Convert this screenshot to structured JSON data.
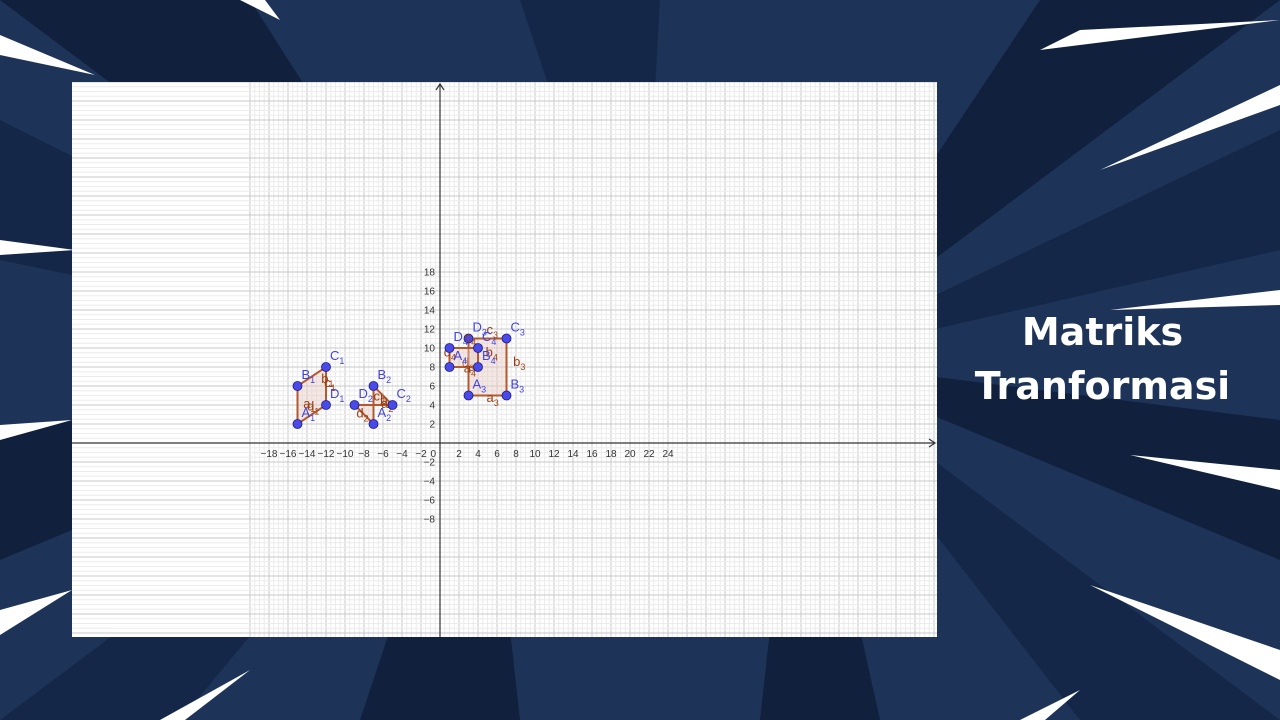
{
  "slide": {
    "title_line1": "Matriks",
    "title_line2": "Tranformasi",
    "colors": {
      "background": "#1d3358",
      "title": "#ffffff",
      "shape_stroke": "#b5582b",
      "shape_fill": "#e8cdc4",
      "vertex": "#4a4ae8"
    }
  },
  "graph": {
    "x_ticks": [
      -18,
      -16,
      -14,
      -12,
      -10,
      -8,
      -6,
      -4,
      -2,
      0,
      2,
      4,
      6,
      8,
      10,
      12,
      14,
      16,
      18,
      20,
      22,
      24
    ],
    "y_ticks": [
      18,
      16,
      14,
      12,
      10,
      8,
      6,
      4,
      2,
      -2,
      -4,
      -6,
      -8
    ],
    "x_tick_labels": [
      "−18",
      "−16",
      "−14",
      "−12",
      "−10",
      "−8",
      "−6",
      "−4",
      "−2",
      "0",
      "2",
      "4",
      "6",
      "8",
      "10",
      "12",
      "14",
      "16",
      "18",
      "20",
      "22",
      "24"
    ],
    "y_tick_labels": [
      "18",
      "16",
      "14",
      "12",
      "10",
      "8",
      "6",
      "4",
      "2",
      "−2",
      "−4",
      "−6",
      "−8"
    ],
    "shapes": [
      {
        "name": "shape-1",
        "vertices": [
          {
            "name": "A",
            "sub": "1",
            "x": -15,
            "y": 2
          },
          {
            "name": "B",
            "sub": "1",
            "x": -15,
            "y": 6
          },
          {
            "name": "C",
            "sub": "1",
            "x": -12,
            "y": 8
          },
          {
            "name": "D",
            "sub": "1",
            "x": -12,
            "y": 4
          }
        ],
        "side_labels": [
          {
            "name": "a",
            "sub": "1",
            "x": -14.4,
            "y": 3.7
          },
          {
            "name": "b",
            "sub": "1",
            "x": -12.5,
            "y": 6.3
          },
          {
            "name": "c",
            "sub": "1",
            "x": -12.2,
            "y": 5.9
          },
          {
            "name": "d",
            "sub": "1",
            "x": -14,
            "y": 3.4
          }
        ]
      },
      {
        "name": "shape-2",
        "vertices": [
          {
            "name": "A",
            "sub": "2",
            "x": -7,
            "y": 2
          },
          {
            "name": "B",
            "sub": "2",
            "x": -7,
            "y": 6
          },
          {
            "name": "C",
            "sub": "2",
            "x": -5,
            "y": 4
          },
          {
            "name": "D",
            "sub": "2",
            "x": -9,
            "y": 4
          }
        ],
        "side_labels": [
          {
            "name": "a",
            "sub": "2",
            "x": -6.2,
            "y": 3.7
          },
          {
            "name": "b",
            "sub": "2",
            "x": -6.3,
            "y": 4.1
          },
          {
            "name": "c",
            "sub": "2",
            "x": -7,
            "y": 4.5
          },
          {
            "name": "d",
            "sub": "2",
            "x": -8.8,
            "y": 2.7
          }
        ]
      },
      {
        "name": "shape-3",
        "vertices": [
          {
            "name": "A",
            "sub": "3",
            "x": 3,
            "y": 5
          },
          {
            "name": "B",
            "sub": "3",
            "x": 7,
            "y": 5
          },
          {
            "name": "C",
            "sub": "3",
            "x": 7,
            "y": 11
          },
          {
            "name": "D",
            "sub": "3",
            "x": 3,
            "y": 11
          }
        ],
        "side_labels": [
          {
            "name": "a",
            "sub": "3",
            "x": 4.9,
            "y": 4.3
          },
          {
            "name": "b",
            "sub": "3",
            "x": 7.7,
            "y": 8.1
          },
          {
            "name": "c",
            "sub": "3",
            "x": 4.9,
            "y": 11.5
          },
          {
            "name": "d",
            "sub": "3",
            "x": 2.3,
            "y": 8
          }
        ]
      },
      {
        "name": "shape-4",
        "vertices": [
          {
            "name": "A",
            "sub": "4",
            "x": 1,
            "y": 8
          },
          {
            "name": "B",
            "sub": "4",
            "x": 4,
            "y": 8
          },
          {
            "name": "C",
            "sub": "4",
            "x": 4,
            "y": 10
          },
          {
            "name": "D",
            "sub": "4",
            "x": 1,
            "y": 10
          }
        ],
        "side_labels": [
          {
            "name": "a",
            "sub": "4",
            "x": 2.5,
            "y": 7.4
          },
          {
            "name": "b",
            "sub": "4",
            "x": 4.8,
            "y": 9.1
          },
          {
            "name": "c",
            "sub": "4",
            "x": 2.6,
            "y": 10.7
          },
          {
            "name": "d",
            "sub": "4",
            "x": 0.4,
            "y": 9.1
          }
        ]
      }
    ]
  }
}
